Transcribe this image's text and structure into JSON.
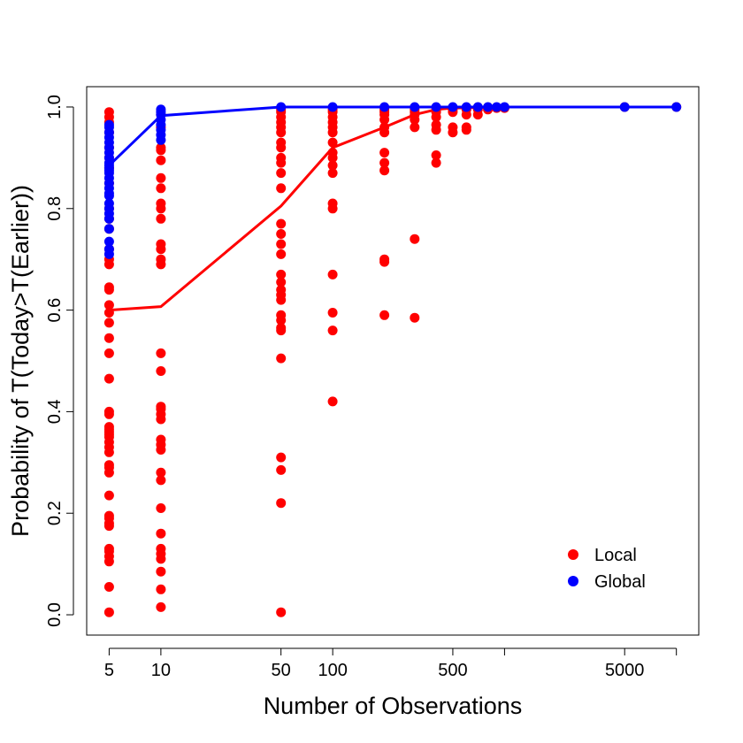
{
  "chart_data": {
    "type": "scatter",
    "title": "",
    "xlabel": "Number of Observations",
    "ylabel": "Probability of T(Today>T(Earlier))",
    "x_scale": "log",
    "xlim": [
      3.7,
      13500
    ],
    "ylim": [
      -0.04,
      1.04
    ],
    "x_ticks": [
      {
        "value": 5,
        "label": "5"
      },
      {
        "value": 10,
        "label": "10"
      },
      {
        "value": 50,
        "label": "50"
      },
      {
        "value": 100,
        "label": "100"
      },
      {
        "value": 500,
        "label": "500"
      },
      {
        "value": 1000,
        "label": ""
      },
      {
        "value": 5000,
        "label": "5000"
      },
      {
        "value": 10000,
        "label": ""
      }
    ],
    "y_ticks": [
      {
        "value": 0.0,
        "label": "0.0"
      },
      {
        "value": 0.2,
        "label": "0.2"
      },
      {
        "value": 0.4,
        "label": "0.4"
      },
      {
        "value": 0.6,
        "label": "0.6"
      },
      {
        "value": 0.8,
        "label": "0.8"
      },
      {
        "value": 1.0,
        "label": "1.0"
      }
    ],
    "grid": false,
    "legend_position": "bottom-right",
    "series": [
      {
        "name": "Local",
        "color": "#ff0000",
        "points": [
          {
            "x": 5,
            "y": [
              0.005,
              0.055,
              0.105,
              0.115,
              0.125,
              0.13,
              0.175,
              0.18,
              0.19,
              0.195,
              0.235,
              0.28,
              0.29,
              0.295,
              0.32,
              0.33,
              0.34,
              0.35,
              0.355,
              0.36,
              0.365,
              0.37,
              0.395,
              0.4,
              0.465,
              0.515,
              0.545,
              0.575,
              0.595,
              0.61,
              0.64,
              0.645,
              0.69,
              0.7,
              0.72,
              0.76,
              0.78,
              0.8,
              0.85,
              0.88,
              0.9,
              0.92,
              0.95,
              0.97,
              0.98,
              0.99
            ]
          },
          {
            "x": 10,
            "y": [
              0.015,
              0.05,
              0.085,
              0.11,
              0.12,
              0.13,
              0.16,
              0.21,
              0.265,
              0.28,
              0.325,
              0.335,
              0.345,
              0.385,
              0.395,
              0.405,
              0.41,
              0.48,
              0.515,
              0.69,
              0.7,
              0.72,
              0.73,
              0.78,
              0.8,
              0.81,
              0.84,
              0.86,
              0.895,
              0.915,
              0.92,
              0.96,
              0.985
            ]
          },
          {
            "x": 50,
            "y": [
              0.005,
              0.22,
              0.285,
              0.31,
              0.505,
              0.56,
              0.565,
              0.58,
              0.59,
              0.62,
              0.63,
              0.64,
              0.655,
              0.67,
              0.71,
              0.73,
              0.75,
              0.77,
              0.84,
              0.87,
              0.89,
              0.9,
              0.92,
              0.93,
              0.95,
              0.96,
              0.97,
              0.98,
              0.99,
              0.995
            ]
          },
          {
            "x": 100,
            "y": [
              0.42,
              0.56,
              0.595,
              0.67,
              0.8,
              0.81,
              0.87,
              0.885,
              0.9,
              0.91,
              0.93,
              0.95,
              0.96,
              0.97,
              0.98,
              0.99,
              0.995
            ]
          },
          {
            "x": 200,
            "y": [
              0.59,
              0.695,
              0.7,
              0.875,
              0.89,
              0.91,
              0.95,
              0.96,
              0.975,
              0.985,
              0.99,
              0.995
            ]
          },
          {
            "x": 300,
            "y": [
              0.585,
              0.74,
              0.96,
              0.975,
              0.985,
              0.99,
              0.995
            ]
          },
          {
            "x": 400,
            "y": [
              0.89,
              0.905,
              0.955,
              0.965,
              0.98,
              0.99,
              0.995
            ]
          },
          {
            "x": 500,
            "y": [
              0.95,
              0.96,
              0.99,
              0.995
            ]
          },
          {
            "x": 600,
            "y": [
              0.955,
              0.96,
              0.985,
              0.995
            ]
          },
          {
            "x": 700,
            "y": [
              0.985,
              0.995
            ]
          },
          {
            "x": 800,
            "y": [
              0.995
            ]
          },
          {
            "x": 900,
            "y": [
              0.998
            ]
          },
          {
            "x": 1000,
            "y": [
              0.998
            ]
          },
          {
            "x": 5000,
            "y": [
              1.0
            ]
          },
          {
            "x": 10000,
            "y": [
              1.0
            ]
          }
        ],
        "line": {
          "x": [
            5,
            10,
            50,
            100,
            200,
            300,
            400,
            500,
            1000,
            5000,
            10000
          ],
          "y": [
            0.6,
            0.607,
            0.805,
            0.92,
            0.96,
            0.985,
            0.995,
            0.998,
            1.0,
            1.0,
            1.0
          ]
        }
      },
      {
        "name": "Global",
        "color": "#0000ff",
        "points": [
          {
            "x": 5,
            "y": [
              0.71,
              0.72,
              0.735,
              0.76,
              0.78,
              0.79,
              0.8,
              0.81,
              0.825,
              0.83,
              0.84,
              0.85,
              0.86,
              0.87,
              0.875,
              0.88,
              0.885,
              0.89,
              0.9,
              0.91,
              0.92,
              0.93,
              0.94,
              0.95,
              0.96,
              0.965
            ]
          },
          {
            "x": 10,
            "y": [
              0.935,
              0.945,
              0.955,
              0.965,
              0.975,
              0.985,
              0.99,
              0.995
            ]
          },
          {
            "x": 50,
            "y": [
              1.0
            ]
          },
          {
            "x": 100,
            "y": [
              1.0
            ]
          },
          {
            "x": 200,
            "y": [
              1.0
            ]
          },
          {
            "x": 300,
            "y": [
              1.0
            ]
          },
          {
            "x": 400,
            "y": [
              1.0
            ]
          },
          {
            "x": 500,
            "y": [
              1.0
            ]
          },
          {
            "x": 600,
            "y": [
              1.0
            ]
          },
          {
            "x": 700,
            "y": [
              1.0
            ]
          },
          {
            "x": 800,
            "y": [
              1.0
            ]
          },
          {
            "x": 900,
            "y": [
              1.0
            ]
          },
          {
            "x": 1000,
            "y": [
              1.0
            ]
          },
          {
            "x": 5000,
            "y": [
              1.0
            ]
          },
          {
            "x": 10000,
            "y": [
              1.0
            ]
          }
        ],
        "line": {
          "x": [
            5,
            10,
            50,
            100,
            200,
            500,
            1000,
            5000,
            10000
          ],
          "y": [
            0.885,
            0.983,
            1.0,
            1.0,
            1.0,
            1.0,
            1.0,
            1.0,
            1.0
          ]
        }
      }
    ]
  }
}
